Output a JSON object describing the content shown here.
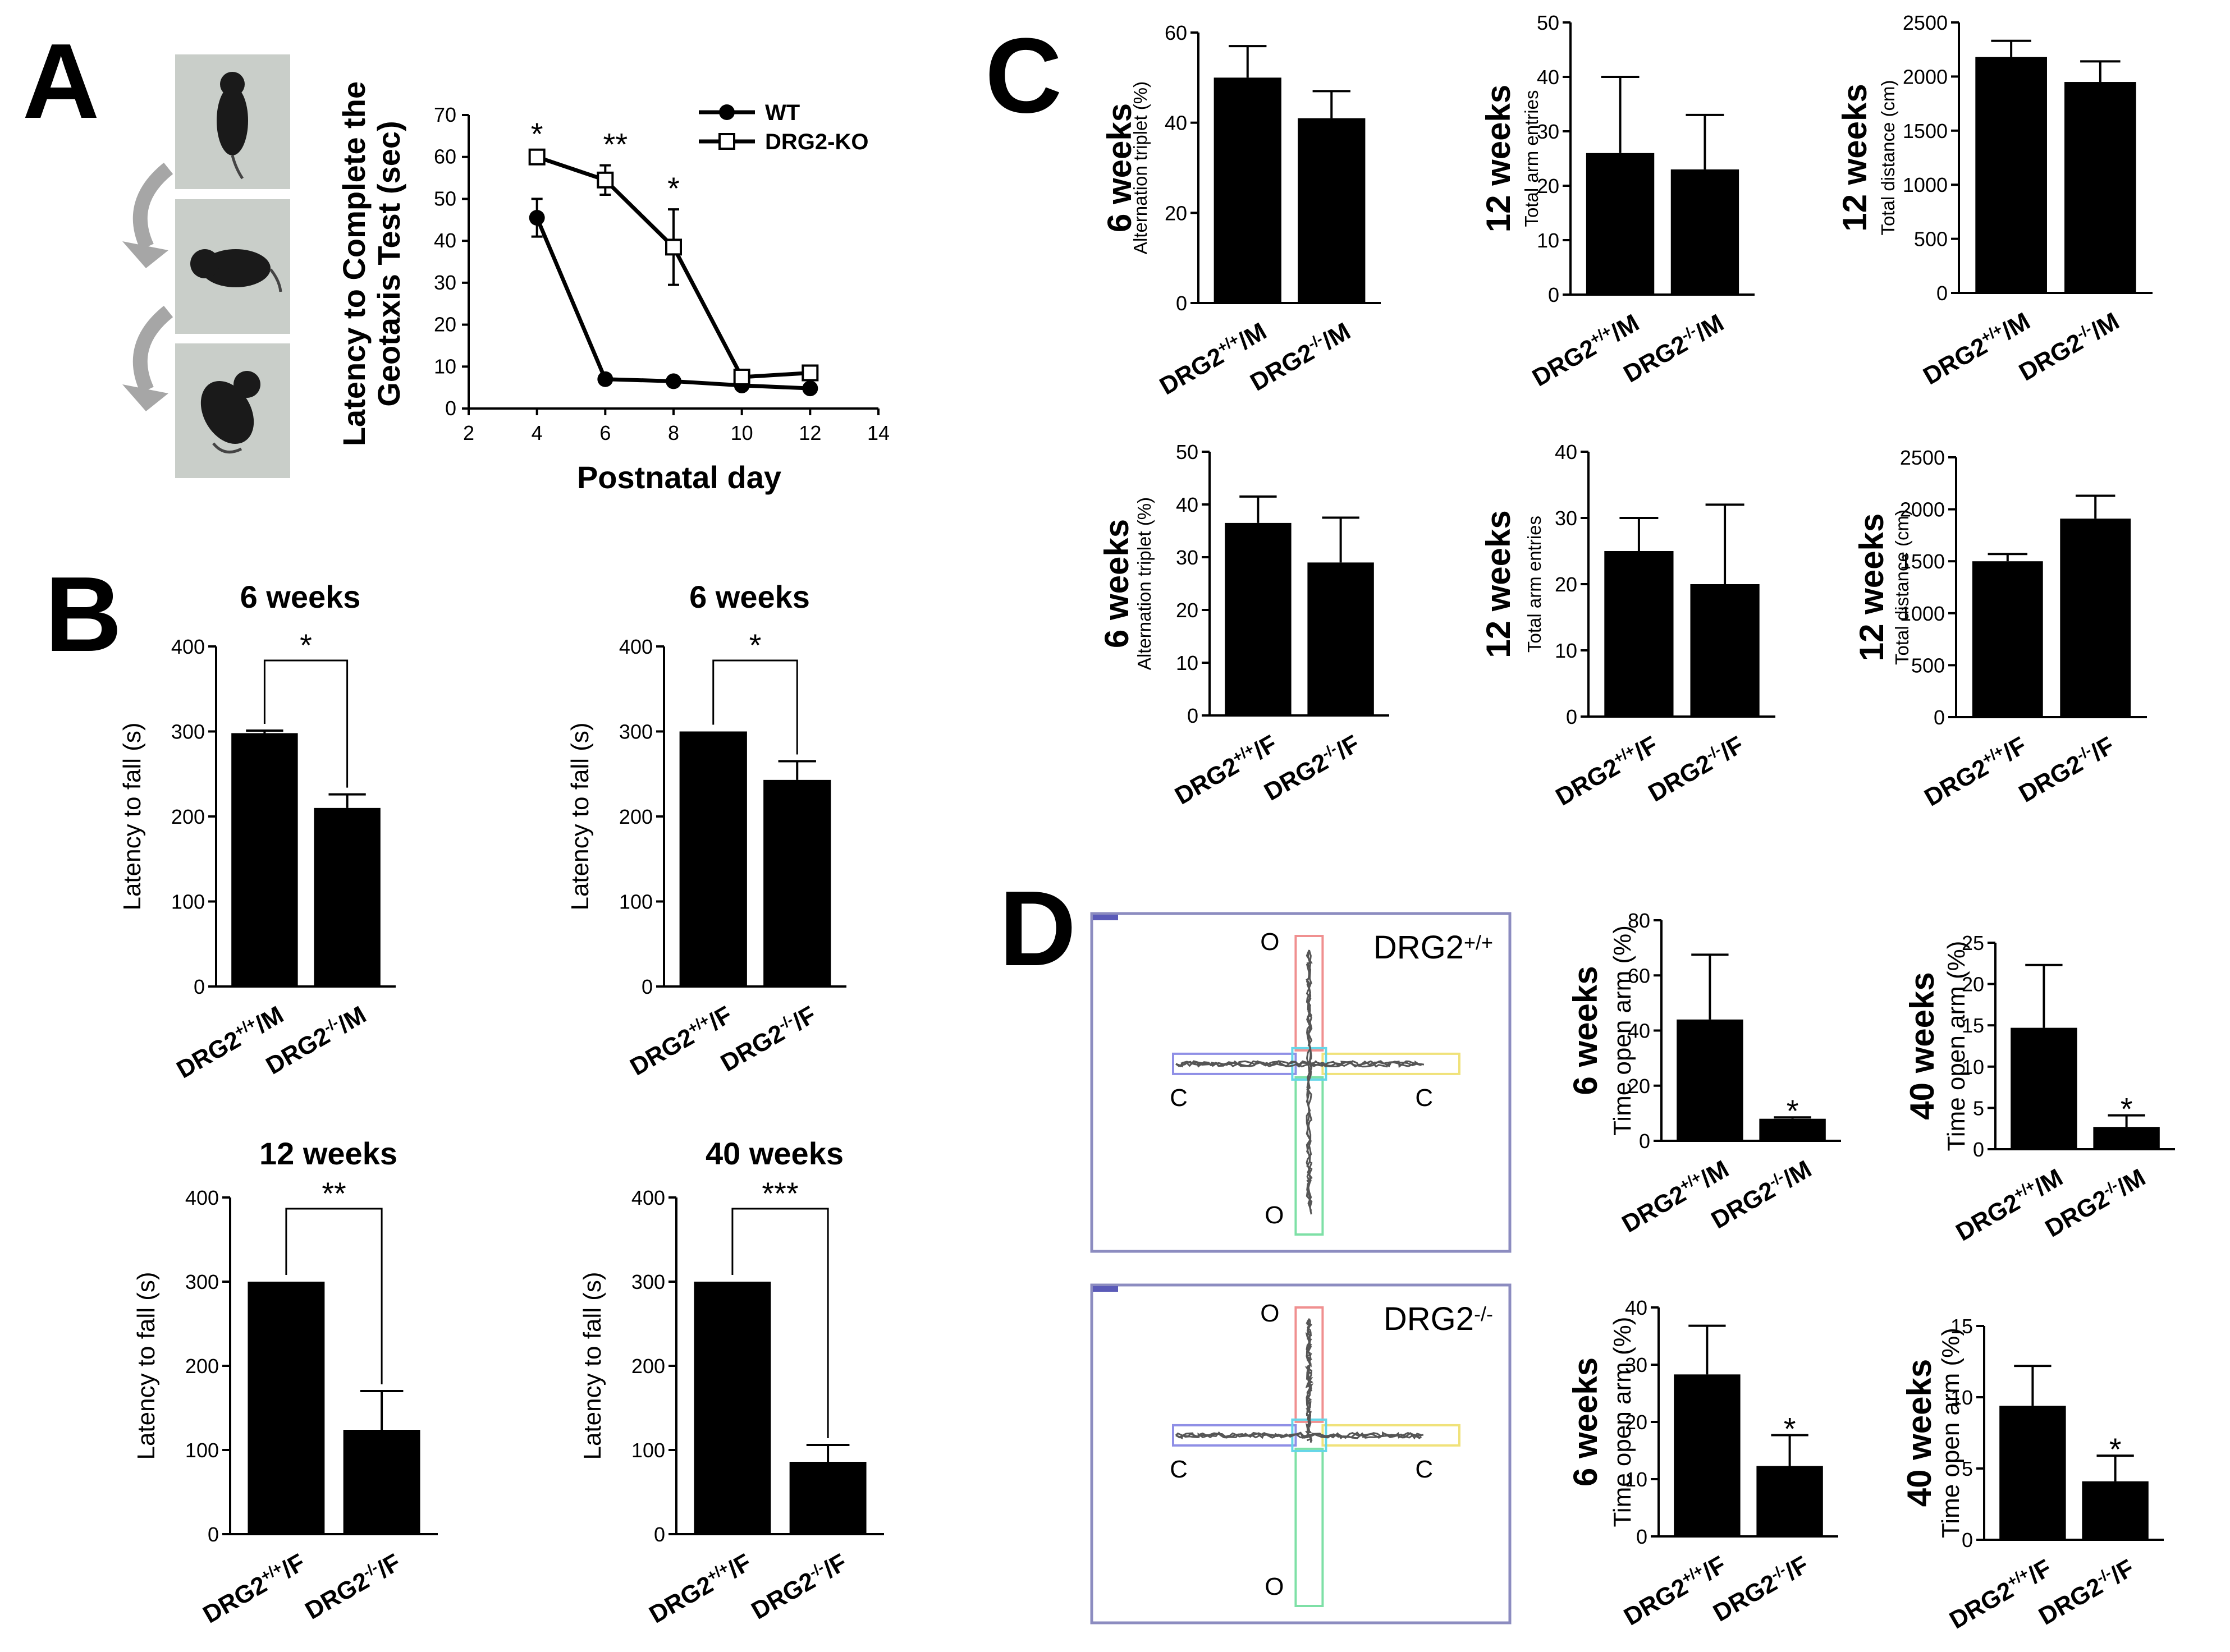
{
  "panels": {
    "A": "A",
    "B": "B",
    "C": "C",
    "D": "D"
  },
  "chart_data": [
    {
      "id": "A-line",
      "type": "line",
      "title": "",
      "xlabel": "Postnatal day",
      "ylabel": "Latency to Complete the Geotaxis Test (sec)",
      "xlim": [
        2,
        14
      ],
      "ylim": [
        0,
        70
      ],
      "xticks": [
        "2",
        "4",
        "6",
        "8",
        "10",
        "12",
        "14"
      ],
      "yticks": [
        "0",
        "10",
        "20",
        "30",
        "40",
        "50",
        "60",
        "70"
      ],
      "series": [
        {
          "name": "WT",
          "marker": "filled-circle",
          "points": [
            {
              "x": 4,
              "y": 45.5,
              "err": 4.5
            },
            {
              "x": 6,
              "y": 7,
              "err": 1
            },
            {
              "x": 8,
              "y": 6.5,
              "err": 0.8
            },
            {
              "x": 10,
              "y": 5.5,
              "err": 0.8
            },
            {
              "x": 12,
              "y": 4.8,
              "err": 0.8
            }
          ]
        },
        {
          "name": "DRG2-KO",
          "marker": "open-square",
          "points": [
            {
              "x": 4,
              "y": 60,
              "err": 0.5
            },
            {
              "x": 6,
              "y": 54.5,
              "err": 3.5
            },
            {
              "x": 8,
              "y": 38.5,
              "err": 9
            },
            {
              "x": 10,
              "y": 7.5,
              "err": 1.5
            },
            {
              "x": 12,
              "y": 8.5,
              "err": 1.5
            }
          ]
        }
      ],
      "annotations": [
        {
          "x": 4,
          "text": "*"
        },
        {
          "x": 6,
          "text": "**"
        },
        {
          "x": 8,
          "text": "*"
        }
      ]
    },
    {
      "id": "B1",
      "type": "bar",
      "title": "6 weeks",
      "ylabel": "Latency to fall (s)",
      "ylim": [
        0,
        400
      ],
      "yticks": [
        "0",
        "100",
        "200",
        "300",
        "400"
      ],
      "categories": [
        {
          "base": "DRG2",
          "sup": "+/+",
          "suffix": "/M"
        },
        {
          "base": "DRG2",
          "sup": "-/-",
          "suffix": "/M"
        }
      ],
      "values": [
        298,
        210
      ],
      "errors": [
        3,
        16
      ],
      "significance": "*"
    },
    {
      "id": "B2",
      "type": "bar",
      "title": "6 weeks",
      "ylabel": "Latency to fall (s)",
      "ylim": [
        0,
        400
      ],
      "yticks": [
        "0",
        "100",
        "200",
        "300",
        "400"
      ],
      "categories": [
        {
          "base": "DRG2",
          "sup": "+/+",
          "suffix": "/F"
        },
        {
          "base": "DRG2",
          "sup": "-/-",
          "suffix": "/F"
        }
      ],
      "values": [
        300,
        243
      ],
      "errors": [
        0,
        22
      ],
      "significance": "*"
    },
    {
      "id": "B3",
      "type": "bar",
      "title": "12 weeks",
      "ylabel": "Latency to fall (s)",
      "ylim": [
        0,
        400
      ],
      "yticks": [
        "0",
        "100",
        "200",
        "300",
        "400"
      ],
      "categories": [
        {
          "base": "DRG2",
          "sup": "+/+",
          "suffix": "/F"
        },
        {
          "base": "DRG2",
          "sup": "-/-",
          "suffix": "/F"
        }
      ],
      "values": [
        300,
        124
      ],
      "errors": [
        0,
        46
      ],
      "significance": "**"
    },
    {
      "id": "B4",
      "type": "bar",
      "title": "40 weeks",
      "ylabel": "Latency to fall (s)",
      "ylim": [
        0,
        400
      ],
      "yticks": [
        "0",
        "100",
        "200",
        "300",
        "400"
      ],
      "categories": [
        {
          "base": "DRG2",
          "sup": "+/+",
          "suffix": "/F"
        },
        {
          "base": "DRG2",
          "sup": "-/-",
          "suffix": "/F"
        }
      ],
      "values": [
        300,
        86
      ],
      "errors": [
        0,
        20
      ],
      "significance": "***"
    },
    {
      "id": "C1",
      "type": "bar",
      "title": "6 weeks",
      "ylabel": "Alternation triplet (%)",
      "ylim": [
        0,
        60
      ],
      "yticks": [
        "0",
        "20",
        "40",
        "60"
      ],
      "categories": [
        {
          "base": "DRG2",
          "sup": "+/+",
          "suffix": "/M"
        },
        {
          "base": "DRG2",
          "sup": "-/-",
          "suffix": "/M"
        }
      ],
      "values": [
        50,
        41
      ],
      "errors": [
        7,
        6
      ]
    },
    {
      "id": "C2",
      "type": "bar",
      "title": "12 weeks",
      "ylabel": "Total arm entries",
      "ylim": [
        0,
        50
      ],
      "yticks": [
        "0",
        "10",
        "20",
        "30",
        "40",
        "50"
      ],
      "categories": [
        {
          "base": "DRG2",
          "sup": "+/+",
          "suffix": "/M"
        },
        {
          "base": "DRG2",
          "sup": "-/-",
          "suffix": "/M"
        }
      ],
      "values": [
        26,
        23
      ],
      "errors": [
        14,
        10
      ]
    },
    {
      "id": "C3",
      "type": "bar",
      "title": "12 weeks",
      "ylabel": "Total distance (cm)",
      "ylim": [
        0,
        2500
      ],
      "yticks": [
        "0",
        "500",
        "1000",
        "1500",
        "2000",
        "2500"
      ],
      "categories": [
        {
          "base": "DRG2",
          "sup": "+/+",
          "suffix": "/M"
        },
        {
          "base": "DRG2",
          "sup": "-/-",
          "suffix": "/M"
        }
      ],
      "values": [
        2180,
        1950
      ],
      "errors": [
        150,
        190
      ]
    },
    {
      "id": "C4",
      "type": "bar",
      "title": "6 weeks",
      "ylabel": "Alternation triplet (%)",
      "ylim": [
        0,
        50
      ],
      "yticks": [
        "0",
        "10",
        "20",
        "30",
        "40",
        "50"
      ],
      "categories": [
        {
          "base": "DRG2",
          "sup": "+/+",
          "suffix": "/F"
        },
        {
          "base": "DRG2",
          "sup": "-/-",
          "suffix": "/F"
        }
      ],
      "values": [
        36.5,
        29
      ],
      "errors": [
        5,
        8.5
      ]
    },
    {
      "id": "C5",
      "type": "bar",
      "title": "12 weeks",
      "ylabel": "Total arm entries",
      "ylim": [
        0,
        40
      ],
      "yticks": [
        "0",
        "10",
        "20",
        "30",
        "40"
      ],
      "categories": [
        {
          "base": "DRG2",
          "sup": "+/+",
          "suffix": "/F"
        },
        {
          "base": "DRG2",
          "sup": "-/-",
          "suffix": "/F"
        }
      ],
      "values": [
        25,
        20
      ],
      "errors": [
        5,
        12
      ]
    },
    {
      "id": "C6",
      "type": "bar",
      "title": "12 weeks",
      "ylabel": "Total distance (cm)",
      "ylim": [
        0,
        2500
      ],
      "yticks": [
        "0",
        "500",
        "1000",
        "1500",
        "2000",
        "2500"
      ],
      "categories": [
        {
          "base": "DRG2",
          "sup": "+/+",
          "suffix": "/F"
        },
        {
          "base": "DRG2",
          "sup": "-/-",
          "suffix": "/F"
        }
      ],
      "values": [
        1500,
        1910
      ],
      "errors": [
        70,
        220
      ]
    },
    {
      "id": "D1",
      "type": "bar",
      "title": "6 weeks",
      "ylabel": "Time open arm (%)",
      "ylim": [
        0,
        80
      ],
      "yticks": [
        "0",
        "20",
        "40",
        "60",
        "80"
      ],
      "categories": [
        {
          "base": "DRG2",
          "sup": "+/+",
          "suffix": "/M"
        },
        {
          "base": "DRG2",
          "sup": "-/-",
          "suffix": "/M"
        }
      ],
      "values": [
        44,
        8
      ],
      "errors": [
        23.5,
        0.5
      ],
      "star": "*"
    },
    {
      "id": "D2",
      "type": "bar",
      "title": "40 weeks",
      "ylabel": "Time open arm (%)",
      "ylim": [
        0,
        25
      ],
      "yticks": [
        "0",
        "5",
        "10",
        "15",
        "20",
        "25"
      ],
      "categories": [
        {
          "base": "DRG2",
          "sup": "+/+",
          "suffix": "/M"
        },
        {
          "base": "DRG2",
          "sup": "-/-",
          "suffix": "/M"
        }
      ],
      "values": [
        14.7,
        2.7
      ],
      "errors": [
        7.6,
        1.4
      ],
      "star": "*"
    },
    {
      "id": "D3",
      "type": "bar",
      "title": "6 weeks",
      "ylabel": "Time open arm (%)",
      "ylim": [
        0,
        40
      ],
      "yticks": [
        "0",
        "10",
        "20",
        "30",
        "40"
      ],
      "categories": [
        {
          "base": "DRG2",
          "sup": "+/+",
          "suffix": "/F"
        },
        {
          "base": "DRG2",
          "sup": "-/-",
          "suffix": "/F"
        }
      ],
      "values": [
        28.3,
        12.3
      ],
      "errors": [
        8.5,
        5.4
      ],
      "star": "*"
    },
    {
      "id": "D4",
      "type": "bar",
      "title": "40 weeks",
      "ylabel": "Time open arm (%)",
      "ylim": [
        0,
        15
      ],
      "yticks": [
        "0",
        "5",
        "10",
        "15"
      ],
      "categories": [
        {
          "base": "DRG2",
          "sup": "+/+",
          "suffix": "/F"
        },
        {
          "base": "DRG2",
          "sup": "-/-",
          "suffix": "/F"
        }
      ],
      "values": [
        9.4,
        4.1
      ],
      "errors": [
        2.8,
        1.8
      ],
      "star": "*"
    }
  ],
  "maze": {
    "wt": {
      "base": "DRG2",
      "sup": "+/+"
    },
    "ko": {
      "base": "DRG2",
      "sup": "-/-"
    },
    "open_label": "O",
    "closed_label": "C"
  }
}
